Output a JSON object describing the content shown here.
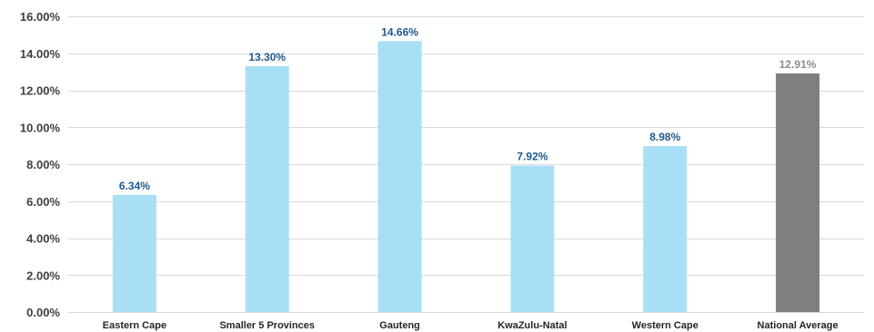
{
  "chart_data": {
    "type": "bar",
    "title": "",
    "xlabel": "",
    "ylabel": "",
    "categories": [
      "Eastern Cape",
      "Smaller 5 Provinces",
      "Gauteng",
      "KwaZulu-Natal",
      "Western Cape",
      "National Average"
    ],
    "values": [
      6.34,
      13.3,
      14.66,
      7.92,
      8.98,
      12.91
    ],
    "value_labels": [
      "6.34%",
      "13.30%",
      "14.66%",
      "7.92%",
      "8.98%",
      "12.91%"
    ],
    "y_ticks": [
      0,
      2,
      4,
      6,
      8,
      10,
      12,
      14,
      16
    ],
    "y_tick_labels": [
      "0.00%",
      "2.00%",
      "4.00%",
      "6.00%",
      "8.00%",
      "10.00%",
      "12.00%",
      "14.00%",
      "16.00%"
    ],
    "ylim": [
      0,
      16
    ],
    "grid": true,
    "colors": {
      "bar": "#a9dff5",
      "highlight_bar": "#7f7f7f",
      "label": "#1f5a8c",
      "highlight_label": "#8c8c8c"
    },
    "highlight_index": 5
  }
}
